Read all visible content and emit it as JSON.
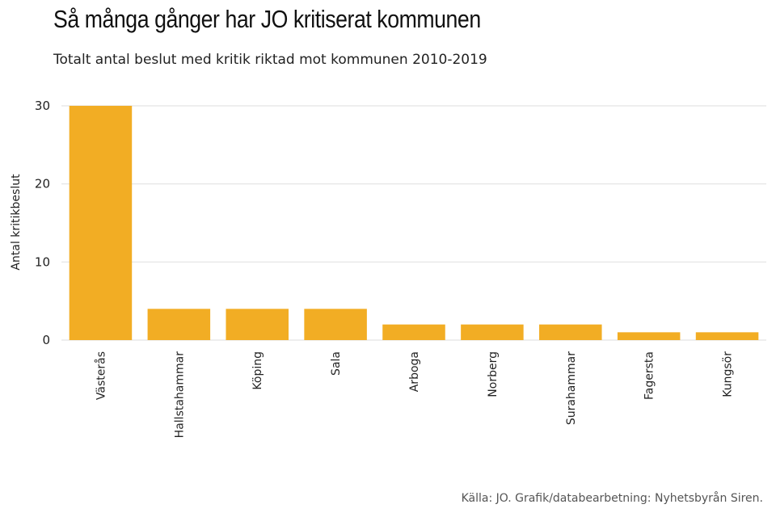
{
  "chart_data": {
    "type": "bar",
    "title": "Så många gånger har JO kritiserat kommunen",
    "subtitle": "Totalt antal beslut med kritik riktad mot kommunen 2010-2019",
    "xlabel": "",
    "ylabel": "Antal kritikbeslut",
    "categories": [
      "Västerås",
      "Hallstahammar",
      "Köping",
      "Sala",
      "Arboga",
      "Norberg",
      "Surahammar",
      "Fagersta",
      "Kungsör"
    ],
    "values": [
      30,
      4,
      4,
      4,
      2,
      2,
      2,
      1,
      1
    ],
    "ylim": [
      0,
      30
    ],
    "yticks": [
      0,
      10,
      20,
      30
    ],
    "grid": true,
    "source": "Källa: JO. Grafik/databearbetning: Nyhetsbyrån Siren."
  },
  "colors": {
    "bar": "#f2ad24",
    "grid": "#e3e3e3",
    "text": "#222222"
  }
}
